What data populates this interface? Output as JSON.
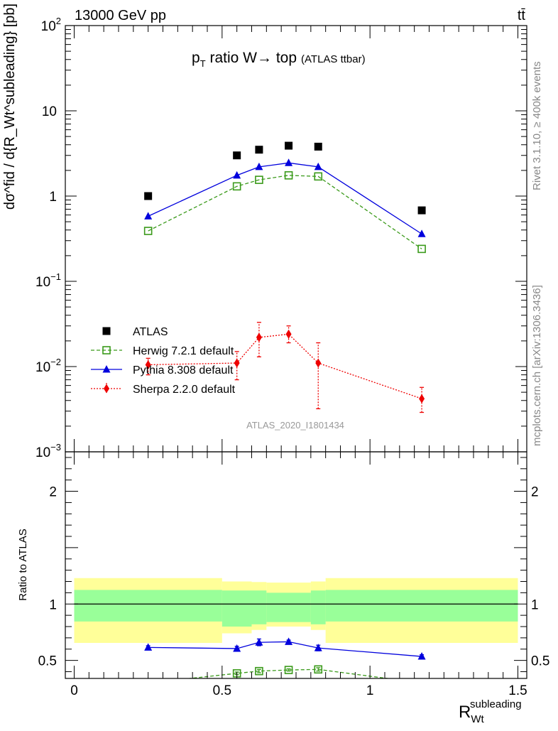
{
  "header": {
    "energy_label": "13000 GeV pp",
    "process_label": "tt̄",
    "rivet_label": "Rivet 3.1.10, ≥ 400k events",
    "site_label": "mcplots.cern.ch [arXiv:1306.3436]",
    "analysis_label": "ATLAS_2020_I1801434"
  },
  "colors": {
    "atlas": "#000000",
    "herwig": "#3a9a1a",
    "pythia": "#0000dd",
    "sherpa": "#ee0000",
    "band_inner": "#99ff99",
    "band_outer": "#ffff99"
  },
  "chart_data": [
    {
      "type": "scatter",
      "title_main": "p",
      "title_sub": "T",
      "title_rest": " ratio W→ top",
      "title_small": "(ATLAS ttbar)",
      "ylabel": "dσ^fid / d{R_Wt^subleading} [pb]",
      "y_scale": "log",
      "ylim": [
        0.001,
        100
      ],
      "y_ticks": [
        {
          "value": 0.001,
          "base": "10",
          "exp": "−3"
        },
        {
          "value": 0.01,
          "base": "10",
          "exp": "−2"
        },
        {
          "value": 0.1,
          "base": "10",
          "exp": "−1"
        },
        {
          "value": 1,
          "base": "1",
          "exp": ""
        },
        {
          "value": 10,
          "base": "10",
          "exp": ""
        },
        {
          "value": 100,
          "base": "10",
          "exp": "2"
        }
      ],
      "xlim": [
        -0.03,
        1.53
      ],
      "legend_position": "lower-left",
      "series": [
        {
          "name": "ATLAS",
          "key": "atlas",
          "marker": "square-filled",
          "line": "none",
          "x": [
            0.25,
            0.55,
            0.625,
            0.725,
            0.825,
            1.175
          ],
          "y": [
            1.0,
            3.0,
            3.5,
            3.9,
            3.8,
            0.68
          ]
        },
        {
          "name": "Herwig 7.2.1 default",
          "key": "herwig",
          "marker": "square-open",
          "line": "dashed",
          "x": [
            0.25,
            0.55,
            0.625,
            0.725,
            0.825,
            1.175
          ],
          "y": [
            0.39,
            1.3,
            1.55,
            1.75,
            1.7,
            0.24
          ]
        },
        {
          "name": "Pythia 8.308 default",
          "key": "pythia",
          "marker": "triangle-filled",
          "line": "solid",
          "x": [
            0.25,
            0.55,
            0.625,
            0.725,
            0.825,
            1.175
          ],
          "y": [
            0.58,
            1.75,
            2.2,
            2.45,
            2.2,
            0.36
          ]
        },
        {
          "name": "Sherpa 2.2.0 default",
          "key": "sherpa",
          "marker": "diamond-filled",
          "line": "dotted",
          "x": [
            0.25,
            0.55,
            0.625,
            0.725,
            0.825,
            1.175
          ],
          "y": [
            0.0105,
            0.011,
            0.022,
            0.024,
            0.011,
            0.0042
          ],
          "y_err_low": [
            0.0025,
            0.004,
            0.009,
            0.005,
            0.0078,
            0.0013
          ],
          "y_err_high": [
            0.002,
            0.004,
            0.011,
            0.006,
            0.008,
            0.0015
          ]
        }
      ]
    },
    {
      "type": "scatter",
      "ylabel": "Ratio to ATLAS",
      "xlabel_main": "R",
      "xlabel_sub": "Wt",
      "xlabel_sup": "subleading",
      "ylim": [
        0.34,
        2.35
      ],
      "y_ticks": [
        0.5,
        1,
        2
      ],
      "y_tick_labels": [
        "0.5",
        "1",
        "2"
      ],
      "xlim": [
        -0.03,
        1.53
      ],
      "x_ticks": [
        0,
        0.5,
        1,
        1.5
      ],
      "x_tick_labels": [
        "0",
        "0.5",
        "1",
        "1.5"
      ],
      "reference_line": 1,
      "bands": [
        {
          "x_low": 0.0,
          "x_high": 0.5,
          "inner_low": 0.845,
          "inner_high": 1.125,
          "outer_low": 0.655,
          "outer_high": 1.23
        },
        {
          "x_low": 0.5,
          "x_high": 0.6,
          "inner_low": 0.8,
          "inner_high": 1.12,
          "outer_low": 0.74,
          "outer_high": 1.2
        },
        {
          "x_low": 0.6,
          "x_high": 0.65,
          "inner_low": 0.82,
          "inner_high": 1.12,
          "outer_low": 0.77,
          "outer_high": 1.195
        },
        {
          "x_low": 0.65,
          "x_high": 0.8,
          "inner_low": 0.84,
          "inner_high": 1.1,
          "outer_low": 0.8,
          "outer_high": 1.19
        },
        {
          "x_low": 0.8,
          "x_high": 0.85,
          "inner_low": 0.82,
          "inner_high": 1.12,
          "outer_low": 0.77,
          "outer_high": 1.2
        },
        {
          "x_low": 0.85,
          "x_high": 1.5,
          "inner_low": 0.845,
          "inner_high": 1.125,
          "outer_low": 0.655,
          "outer_high": 1.23
        }
      ],
      "series": [
        {
          "key": "pythia",
          "x": [
            0.25,
            0.55,
            0.625,
            0.725,
            0.825,
            1.175
          ],
          "y": [
            0.615,
            0.605,
            0.66,
            0.665,
            0.61,
            0.535
          ],
          "y_err_low": [
            0.015,
            0.02,
            0.03,
            0.015,
            0.025,
            0.015
          ],
          "y_err_high": [
            0.015,
            0.02,
            0.03,
            0.015,
            0.025,
            0.015
          ]
        },
        {
          "key": "herwig",
          "x": [
            0.25,
            0.55,
            0.625,
            0.725,
            0.825,
            1.175
          ],
          "y": [
            0.3,
            0.385,
            0.405,
            0.415,
            0.42,
            0.3
          ],
          "y_err_low": [
            0.01,
            0.012,
            0.015,
            0.01,
            0.015,
            0.01
          ],
          "y_err_high": [
            0.01,
            0.012,
            0.015,
            0.01,
            0.015,
            0.01
          ]
        }
      ]
    }
  ]
}
